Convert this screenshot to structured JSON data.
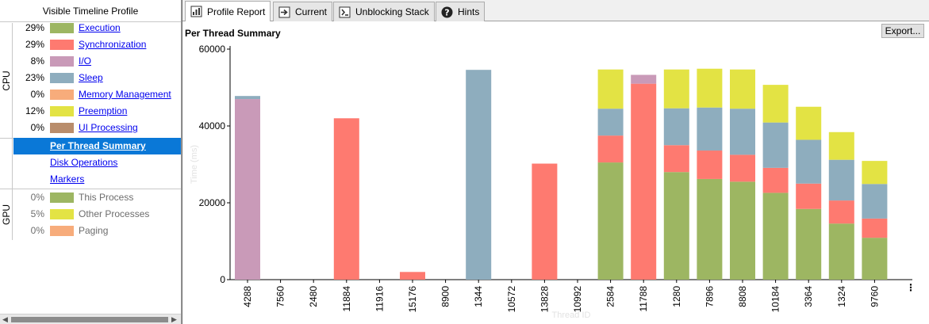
{
  "left_panel": {
    "title": "Visible Timeline Profile",
    "cpu_label": "CPU",
    "gpu_label": "GPU",
    "cpu_items": [
      {
        "pct": "29%",
        "label": "Execution",
        "color": "#9db662"
      },
      {
        "pct": "29%",
        "label": "Synchronization",
        "color": "#fe7a70"
      },
      {
        "pct": "8%",
        "label": "I/O",
        "color": "#c99ab8"
      },
      {
        "pct": "23%",
        "label": "Sleep",
        "color": "#8eadbe"
      },
      {
        "pct": "0%",
        "label": "Memory Management",
        "color": "#f7ac7b"
      },
      {
        "pct": "12%",
        "label": "Preemption",
        "color": "#e3e344"
      },
      {
        "pct": "0%",
        "label": "UI Processing",
        "color": "#b98d6b"
      }
    ],
    "nav_items": [
      {
        "label": "Per Thread Summary",
        "selected": true
      },
      {
        "label": "Disk Operations",
        "selected": false
      },
      {
        "label": "Markers",
        "selected": false
      }
    ],
    "gpu_items": [
      {
        "pct": "0%",
        "label": "This Process",
        "color": "#9db662"
      },
      {
        "pct": "5%",
        "label": "Other Processes",
        "color": "#e3e344"
      },
      {
        "pct": "0%",
        "label": "Paging",
        "color": "#f7ac7b"
      }
    ]
  },
  "tabs": [
    {
      "label": "Profile Report",
      "icon": "report-icon",
      "active": true
    },
    {
      "label": "Current",
      "icon": "arrow-right-icon",
      "active": false
    },
    {
      "label": "Unblocking Stack",
      "icon": "stack-icon",
      "active": false
    },
    {
      "label": "Hints",
      "icon": "help-icon",
      "active": false
    }
  ],
  "panel_title": "Per Thread Summary",
  "export_label": "Export...",
  "more_label": "⋮",
  "chart_data": {
    "type": "bar",
    "stacked": true,
    "xlabel": "Thread ID",
    "ylabel": "Time (ms)",
    "ylim": [
      0,
      60000
    ],
    "yticks": [
      0,
      20000,
      40000,
      60000
    ],
    "categories": [
      "4288",
      "7560",
      "2480",
      "11884",
      "11916",
      "15176",
      "8900",
      "1344",
      "10572",
      "13828",
      "10992",
      "2584",
      "11788",
      "1280",
      "7896",
      "8808",
      "10184",
      "3364",
      "1324",
      "9760"
    ],
    "series": [
      {
        "name": "Execution",
        "color": "#9db662",
        "values": [
          0,
          0,
          0,
          0,
          0,
          0,
          0,
          0,
          0,
          0,
          0,
          30500,
          0,
          28000,
          26200,
          25500,
          22600,
          18400,
          14600,
          10900
        ]
      },
      {
        "name": "Synchronization",
        "color": "#fe7a70",
        "values": [
          0,
          0,
          0,
          42000,
          0,
          2000,
          0,
          0,
          0,
          30200,
          0,
          7000,
          51000,
          7000,
          7400,
          7000,
          6500,
          6600,
          6000,
          5000
        ]
      },
      {
        "name": "I/O",
        "color": "#c99ab8",
        "values": [
          47000,
          0,
          0,
          0,
          0,
          0,
          0,
          0,
          0,
          0,
          0,
          0,
          2300,
          0,
          0,
          0,
          0,
          0,
          0,
          0
        ]
      },
      {
        "name": "Sleep",
        "color": "#8eadbe",
        "values": [
          800,
          0,
          0,
          0,
          0,
          0,
          0,
          54600,
          0,
          0,
          0,
          7000,
          0,
          9600,
          11200,
          12000,
          11800,
          11400,
          10600,
          9000
        ]
      },
      {
        "name": "Preemption",
        "color": "#e3e344",
        "values": [
          0,
          0,
          0,
          0,
          0,
          0,
          0,
          0,
          0,
          0,
          0,
          10200,
          0,
          10100,
          10100,
          10200,
          9800,
          8600,
          7200,
          6000
        ]
      }
    ]
  }
}
